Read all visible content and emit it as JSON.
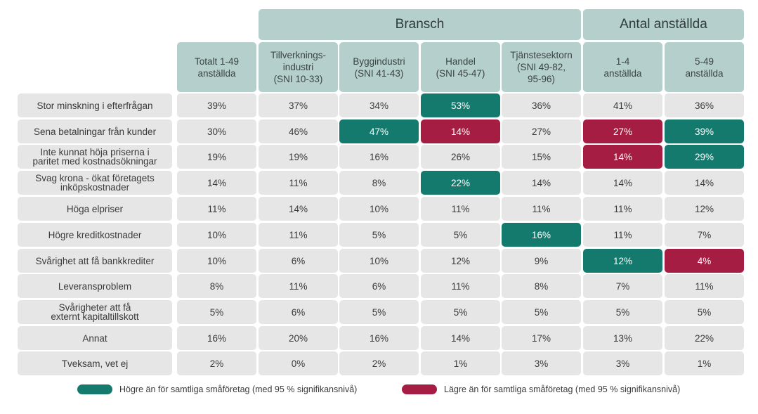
{
  "chart_data": {
    "type": "table",
    "column_groups": [
      {
        "label": "Bransch"
      },
      {
        "label": "Antal anställda"
      }
    ],
    "columns": [
      {
        "label": "Totalt 1-49\nanställda"
      },
      {
        "label": "Tillverknings-\nindustri\n(SNI 10-33)"
      },
      {
        "label": "Byggindustri\n(SNI 41-43)"
      },
      {
        "label": "Handel\n(SNI 45-47)"
      },
      {
        "label": "Tjänstesektorn\n(SNI 49-82,\n95-96)"
      },
      {
        "label": "1-4\nanställda"
      },
      {
        "label": "5-49\nanställda"
      }
    ],
    "rows": [
      {
        "label": "Stor minskning i efterfrågan",
        "values": [
          "39%",
          "37%",
          "34%",
          "53%",
          "36%",
          "41%",
          "36%"
        ],
        "flags": [
          "",
          "",
          "",
          "high",
          "",
          "",
          ""
        ]
      },
      {
        "label": "Sena betalningar från kunder",
        "values": [
          "30%",
          "46%",
          "47%",
          "14%",
          "27%",
          "27%",
          "39%"
        ],
        "flags": [
          "",
          "",
          "high",
          "low",
          "",
          "low",
          "high"
        ]
      },
      {
        "label": "Inte kunnat höja priserna i\nparitet med kostnadsökningar",
        "values": [
          "19%",
          "19%",
          "16%",
          "26%",
          "15%",
          "14%",
          "29%"
        ],
        "flags": [
          "",
          "",
          "",
          "",
          "",
          "low",
          "high"
        ]
      },
      {
        "label": "Svag krona - ökat företagets\ninköpskostnader",
        "values": [
          "14%",
          "11%",
          "8%",
          "22%",
          "14%",
          "14%",
          "14%"
        ],
        "flags": [
          "",
          "",
          "",
          "high",
          "",
          "",
          ""
        ]
      },
      {
        "label": "Höga elpriser",
        "values": [
          "11%",
          "14%",
          "10%",
          "11%",
          "11%",
          "11%",
          "12%"
        ],
        "flags": [
          "",
          "",
          "",
          "",
          "",
          "",
          ""
        ]
      },
      {
        "label": "Högre kreditkostnader",
        "values": [
          "10%",
          "11%",
          "5%",
          "5%",
          "16%",
          "11%",
          "7%"
        ],
        "flags": [
          "",
          "",
          "",
          "",
          "high",
          "",
          ""
        ]
      },
      {
        "label": "Svårighet att få bankkrediter",
        "values": [
          "10%",
          "6%",
          "10%",
          "12%",
          "9%",
          "12%",
          "4%"
        ],
        "flags": [
          "",
          "",
          "",
          "",
          "",
          "high",
          "low"
        ]
      },
      {
        "label": "Leveransproblem",
        "values": [
          "8%",
          "11%",
          "6%",
          "11%",
          "8%",
          "7%",
          "11%"
        ],
        "flags": [
          "",
          "",
          "",
          "",
          "",
          "",
          ""
        ]
      },
      {
        "label": "Svårigheter att få\nexternt kapitaltillskott",
        "values": [
          "5%",
          "6%",
          "5%",
          "5%",
          "5%",
          "5%",
          "5%"
        ],
        "flags": [
          "",
          "",
          "",
          "",
          "",
          "",
          ""
        ]
      },
      {
        "label": "Annat",
        "values": [
          "16%",
          "20%",
          "16%",
          "14%",
          "17%",
          "13%",
          "22%"
        ],
        "flags": [
          "",
          "",
          "",
          "",
          "",
          "",
          ""
        ]
      },
      {
        "label": "Tveksam, vet ej",
        "values": [
          "2%",
          "0%",
          "2%",
          "1%",
          "3%",
          "3%",
          "1%"
        ],
        "flags": [
          "",
          "",
          "",
          "",
          "",
          "",
          ""
        ]
      }
    ],
    "legend": [
      {
        "key": "high",
        "label": "Högre än för samtliga småföretag (med 95 % signifikansnivå)",
        "color": "#157a6e"
      },
      {
        "key": "low",
        "label": "Lägre än för samtliga småföretag (med 95 % signifikansnivå)",
        "color": "#a51d42"
      }
    ],
    "colors": {
      "header": "#b5d0cc",
      "cell": "#e6e6e6",
      "high": "#157a6e",
      "low": "#a51d42"
    }
  }
}
